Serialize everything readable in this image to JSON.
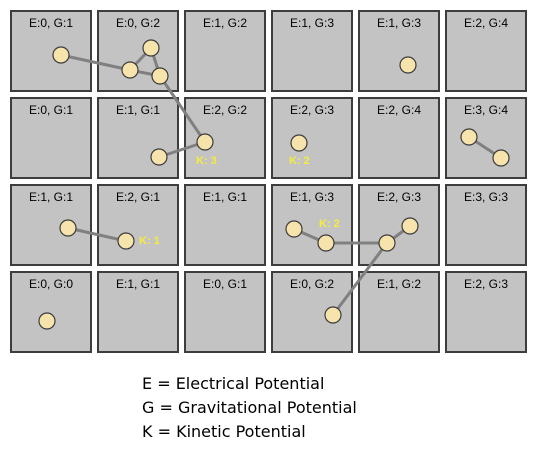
{
  "grid": {
    "rows": [
      [
        "E:0, G:1",
        "E:0, G:2",
        "E:1, G:2",
        "E:1, G:3",
        "E:1, G:3",
        "E:2, G:4"
      ],
      [
        "E:0, G:1",
        "E:1, G:1",
        "E:2, G:2",
        "E:2, G:3",
        "E:2, G:4",
        "E:3, G:4"
      ],
      [
        "E:1, G:1",
        "E:2, G:1",
        "E:1, G:1",
        "E:1, G:3",
        "E:2, G:3",
        "E:3, G:3"
      ],
      [
        "E:0, G:0",
        "E:1, G:1",
        "E:0, G:1",
        "E:0, G:2",
        "E:1, G:2",
        "E:2, G:3"
      ]
    ]
  },
  "kinetic_labels": [
    "K: 3",
    "K: 2",
    "K: 1",
    "K: 2"
  ],
  "legend": [
    "E = Electrical Potential",
    "G = Gravitational Potential",
    "K = Kinetic Potential"
  ],
  "colors": {
    "cell_fill": "#c3c3c3",
    "cell_border": "#3d3d3d",
    "node_fill": "#f7e4ad",
    "node_stroke": "#3a3a3a",
    "link": "#808080",
    "kinetic_text": "#f5ec3b"
  }
}
